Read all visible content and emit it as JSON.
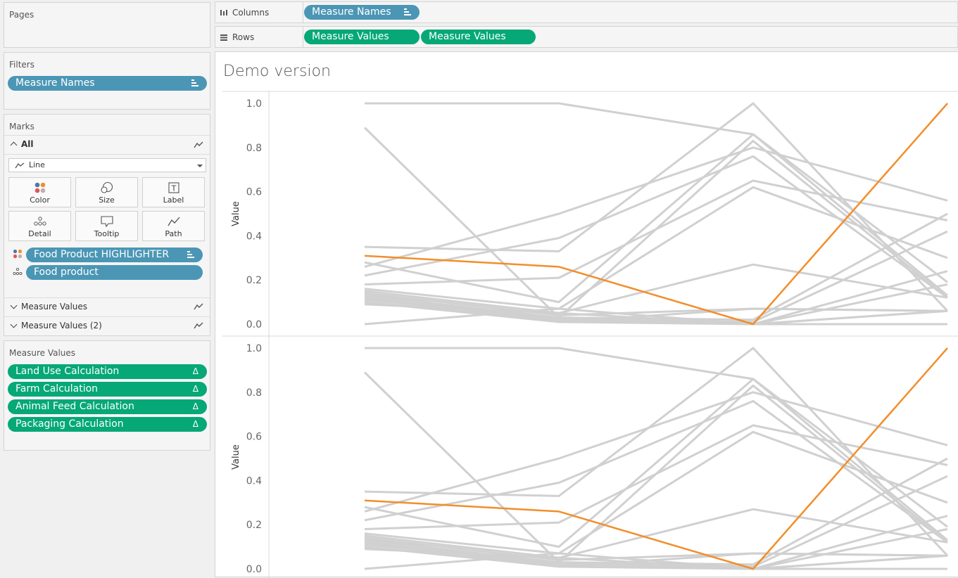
{
  "pages": {
    "title": "Pages"
  },
  "filters": {
    "title": "Filters",
    "pill": "Measure Names"
  },
  "marks": {
    "title": "Marks",
    "all_label": "All",
    "type_select": "Line",
    "buttons": [
      "Color",
      "Size",
      "Label",
      "Detail",
      "Tooltip",
      "Path"
    ],
    "pills": [
      {
        "label": "Food Product HIGHLIGHTER",
        "icon": "color-dots-icon"
      },
      {
        "label": "Food product",
        "icon": "detail-dots-icon"
      }
    ],
    "sections": [
      "Measure Values",
      "Measure Values (2)"
    ]
  },
  "measure_values": {
    "title": "Measure Values",
    "pills": [
      "Land Use Calculation",
      "Farm Calculation",
      "Animal Feed Calculation",
      "Packaging Calculation"
    ],
    "delta_glyph": "Δ"
  },
  "columns_shelf": {
    "label": "Columns",
    "pills": [
      "Measure Names"
    ]
  },
  "rows_shelf": {
    "label": "Rows",
    "pills": [
      "Measure Values",
      "Measure Values"
    ]
  },
  "view": {
    "title": "Demo version"
  },
  "colors": {
    "highlight": "#f28e2b",
    "line": "#d0d0d0",
    "blue_pill": "#4b96b5",
    "green_pill": "#05a876"
  },
  "chart_data": [
    {
      "type": "line",
      "title": "",
      "ylabel": "Value",
      "ylim": [
        0,
        1
      ],
      "yticks": [
        "0.0",
        "0.2",
        "0.4",
        "0.6",
        "0.8",
        "1.0"
      ],
      "x": [
        "Land Use Calculation",
        "Farm Calculation",
        "Animal Feed Calculation",
        "Packaging Calculation"
      ],
      "series": [
        {
          "highlight": true,
          "values": [
            0.31,
            0.26,
            0.0,
            1.0
          ]
        },
        {
          "values": [
            1.0,
            1.0,
            0.86,
            0.13
          ]
        },
        {
          "values": [
            0.89,
            0.03,
            0.83,
            0.12
          ]
        },
        {
          "values": [
            0.35,
            0.33,
            1.0,
            0.06
          ]
        },
        {
          "values": [
            0.28,
            0.1,
            0.86,
            0.19
          ]
        },
        {
          "values": [
            0.26,
            0.5,
            0.8,
            0.56
          ]
        },
        {
          "values": [
            0.22,
            0.39,
            0.76,
            0.12
          ]
        },
        {
          "values": [
            0.18,
            0.21,
            0.65,
            0.47
          ]
        },
        {
          "values": [
            0.16,
            0.07,
            0.62,
            0.3
          ]
        },
        {
          "values": [
            0.15,
            0.05,
            0.27,
            0.12
          ]
        },
        {
          "values": [
            0.14,
            0.04,
            0.07,
            0.06
          ]
        },
        {
          "values": [
            0.13,
            0.03,
            0.02,
            0.5
          ]
        },
        {
          "values": [
            0.12,
            0.02,
            0.01,
            0.42
          ]
        },
        {
          "values": [
            0.12,
            0.02,
            0.0,
            0.24
          ]
        },
        {
          "values": [
            0.11,
            0.03,
            0.0,
            0.18
          ]
        },
        {
          "values": [
            0.1,
            0.02,
            0.0,
            0.06
          ]
        },
        {
          "values": [
            0.1,
            0.01,
            0.0,
            0.0
          ]
        },
        {
          "values": [
            0.09,
            0.05,
            0.0,
            0.06
          ]
        },
        {
          "values": [
            0.0,
            0.07,
            0.0,
            0.0
          ]
        },
        {
          "values": [
            0.14,
            0.01,
            0.07,
            0.06
          ]
        }
      ]
    },
    {
      "type": "line",
      "title": "",
      "ylabel": "Value",
      "ylim": [
        0,
        1
      ],
      "yticks": [
        "0.0",
        "0.2",
        "0.4",
        "0.6",
        "0.8",
        "1.0"
      ],
      "x": [
        "Land Use Calculation",
        "Farm Calculation",
        "Animal Feed Calculation",
        "Packaging Calculation"
      ],
      "series": [
        {
          "highlight": true,
          "values": [
            0.31,
            0.26,
            0.0,
            1.0
          ]
        },
        {
          "values": [
            1.0,
            1.0,
            0.86,
            0.13
          ]
        },
        {
          "values": [
            0.89,
            0.03,
            0.83,
            0.12
          ]
        },
        {
          "values": [
            0.35,
            0.33,
            1.0,
            0.06
          ]
        },
        {
          "values": [
            0.28,
            0.1,
            0.86,
            0.19
          ]
        },
        {
          "values": [
            0.26,
            0.5,
            0.8,
            0.56
          ]
        },
        {
          "values": [
            0.22,
            0.39,
            0.76,
            0.12
          ]
        },
        {
          "values": [
            0.18,
            0.21,
            0.65,
            0.47
          ]
        },
        {
          "values": [
            0.16,
            0.07,
            0.62,
            0.3
          ]
        },
        {
          "values": [
            0.15,
            0.05,
            0.27,
            0.12
          ]
        },
        {
          "values": [
            0.14,
            0.04,
            0.07,
            0.06
          ]
        },
        {
          "values": [
            0.13,
            0.03,
            0.02,
            0.5
          ]
        },
        {
          "values": [
            0.12,
            0.02,
            0.01,
            0.42
          ]
        },
        {
          "values": [
            0.12,
            0.02,
            0.0,
            0.24
          ]
        },
        {
          "values": [
            0.11,
            0.03,
            0.0,
            0.18
          ]
        },
        {
          "values": [
            0.1,
            0.02,
            0.0,
            0.06
          ]
        },
        {
          "values": [
            0.1,
            0.01,
            0.0,
            0.0
          ]
        },
        {
          "values": [
            0.09,
            0.05,
            0.0,
            0.06
          ]
        },
        {
          "values": [
            0.0,
            0.07,
            0.0,
            0.0
          ]
        },
        {
          "values": [
            0.14,
            0.01,
            0.07,
            0.06
          ]
        }
      ]
    }
  ]
}
